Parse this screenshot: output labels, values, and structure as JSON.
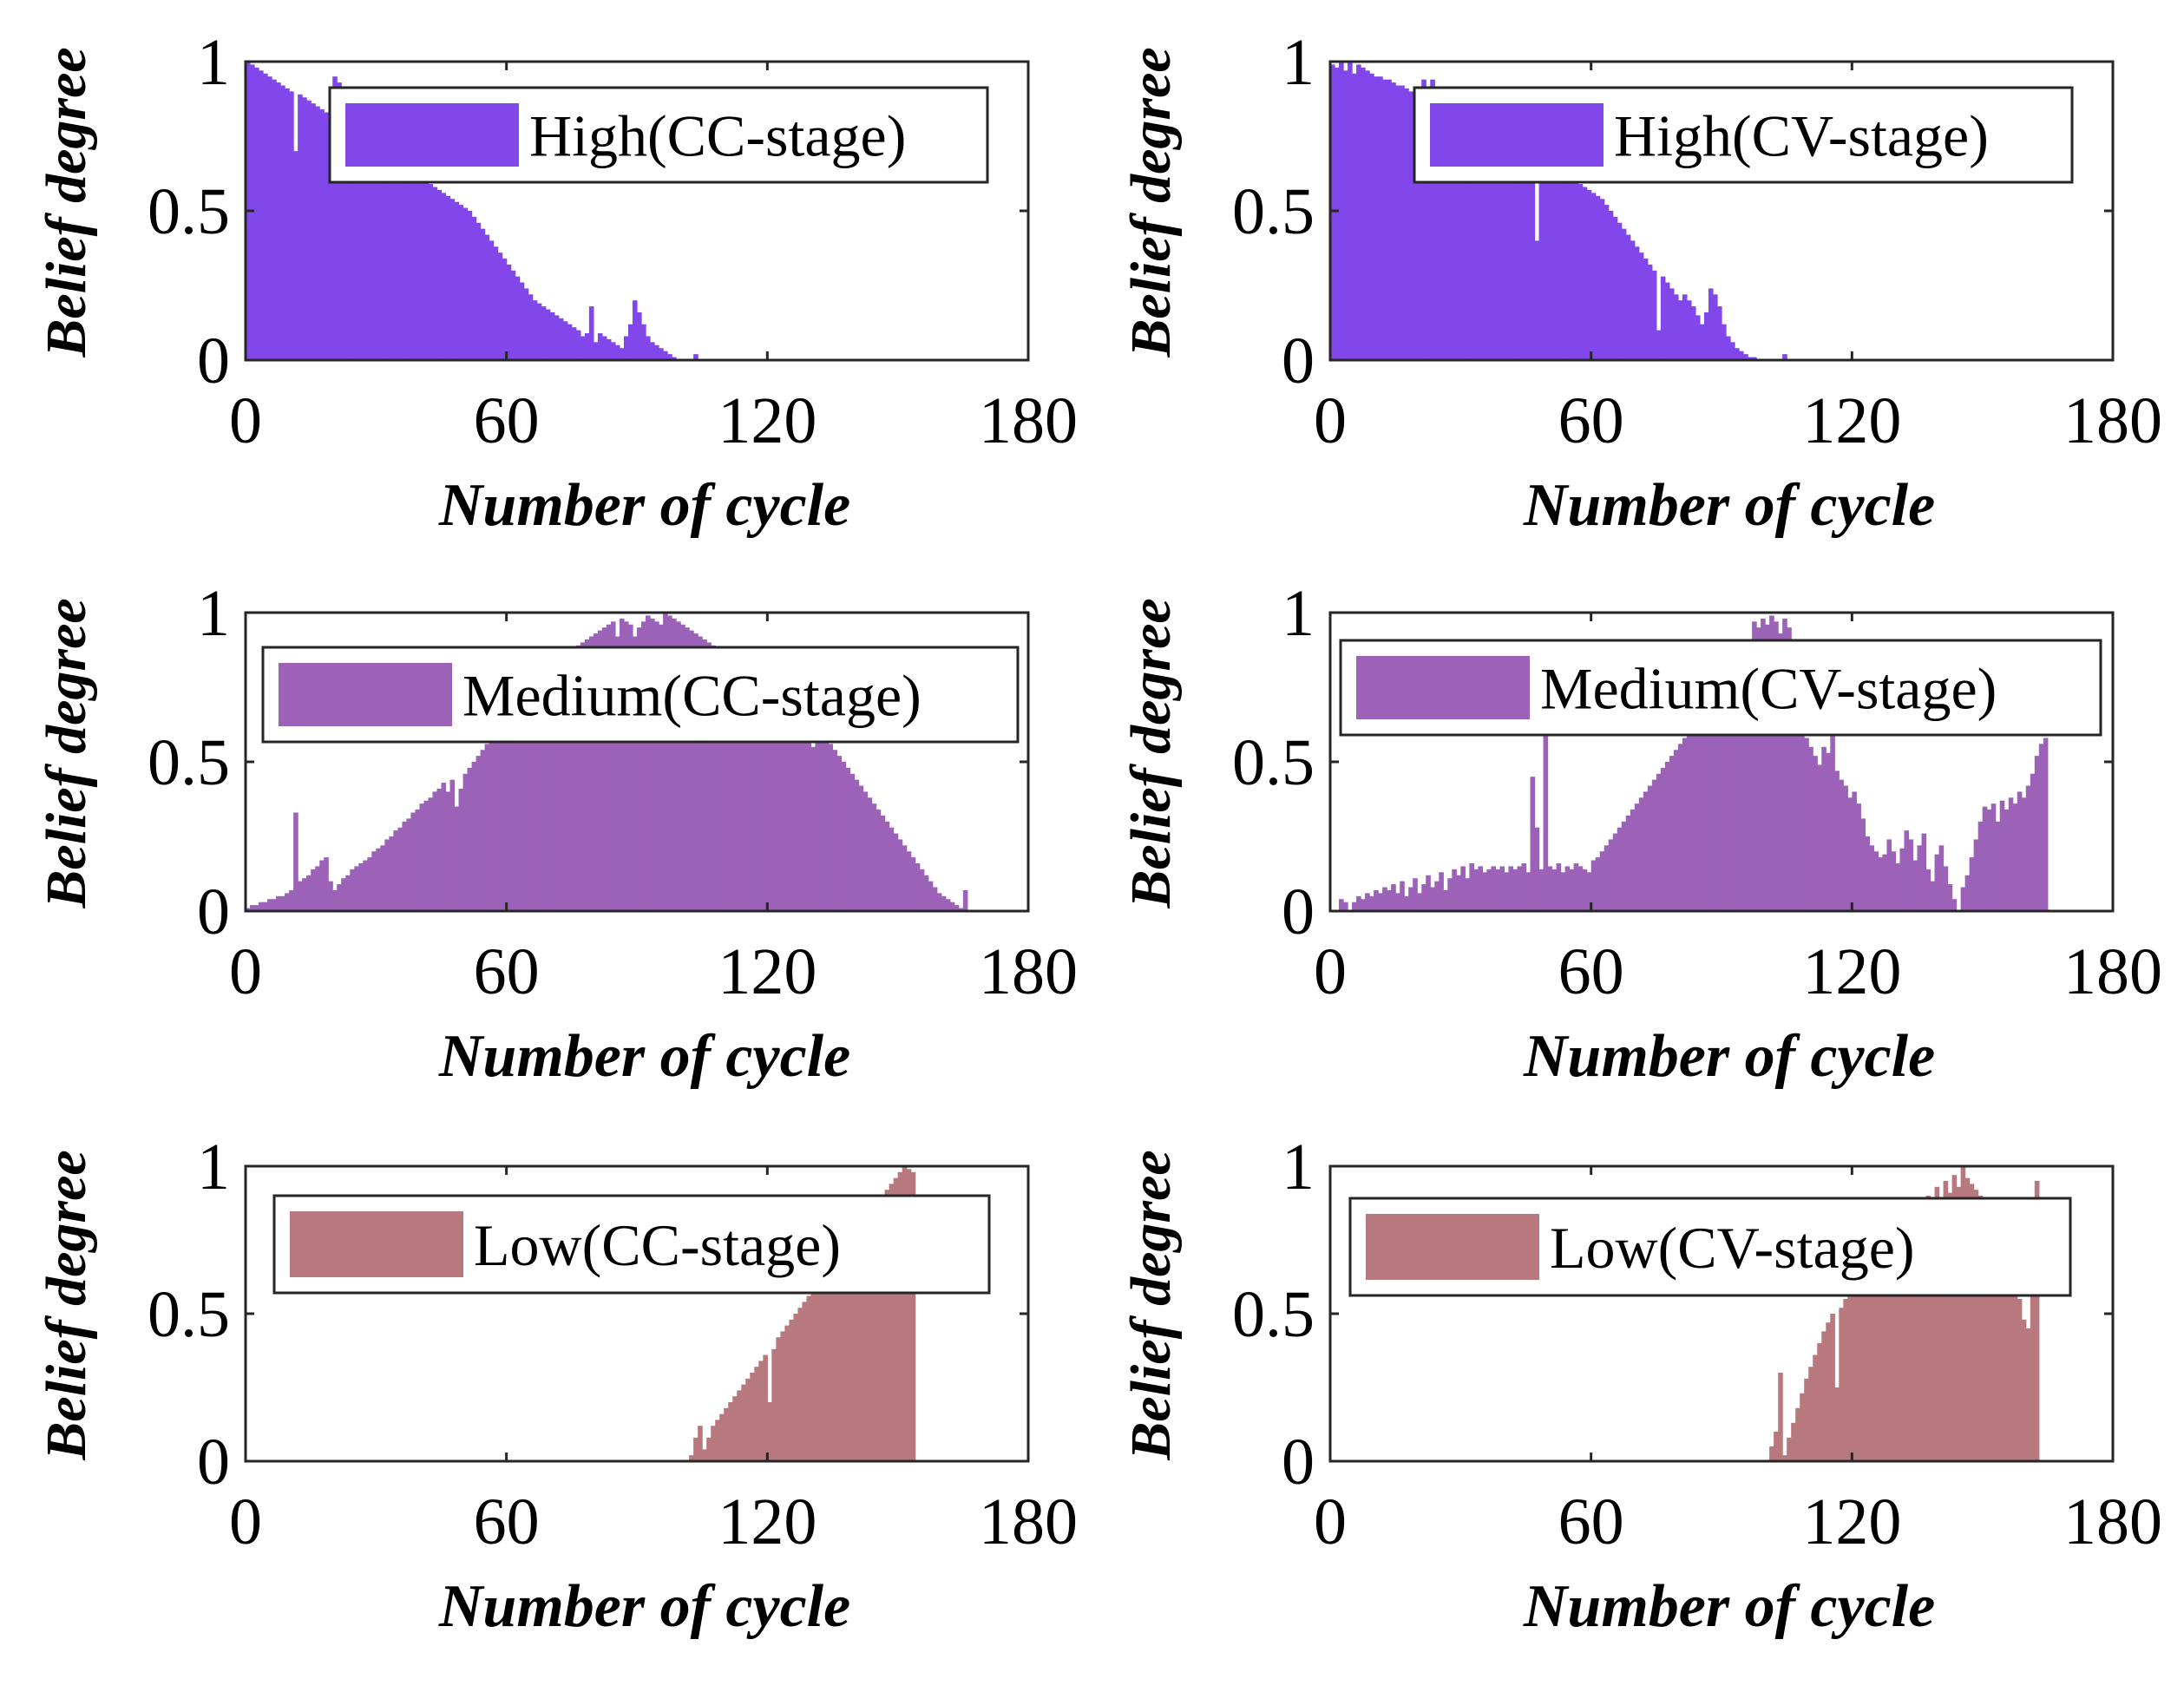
{
  "chart_data": [
    {
      "type": "bar",
      "id": "high-cc",
      "legend": "High(CC-stage)",
      "color": "#8147EA",
      "xlabel": "Number of cycle",
      "ylabel": "Belief degree",
      "xlim": [
        0,
        180
      ],
      "ylim": [
        0,
        1
      ],
      "xticks": [
        "0",
        "60",
        "120",
        "180"
      ],
      "yticks": [
        "0",
        "0.5",
        "1"
      ],
      "legend_position": "top-right",
      "values": [
        1.0,
        0.99,
        0.98,
        0.97,
        0.96,
        0.95,
        0.94,
        0.93,
        0.92,
        0.91,
        0.9,
        0.7,
        0.89,
        0.88,
        0.87,
        0.86,
        0.85,
        0.84,
        0.83,
        0.82,
        0.95,
        0.93,
        0.8,
        0.78,
        0.77,
        0.76,
        0.75,
        0.74,
        0.73,
        0.72,
        0.71,
        0.7,
        0.69,
        0.68,
        0.67,
        0.66,
        0.65,
        0.64,
        0.63,
        0.62,
        0.61,
        0.6,
        0.59,
        0.58,
        0.57,
        0.56,
        0.55,
        0.54,
        0.53,
        0.52,
        0.51,
        0.5,
        0.48,
        0.46,
        0.44,
        0.42,
        0.4,
        0.38,
        0.36,
        0.34,
        0.32,
        0.3,
        0.28,
        0.26,
        0.24,
        0.22,
        0.2,
        0.19,
        0.18,
        0.17,
        0.16,
        0.15,
        0.14,
        0.13,
        0.12,
        0.11,
        0.1,
        0.08,
        0.09,
        0.18,
        0.06,
        0.09,
        0.08,
        0.07,
        0.06,
        0.05,
        0.04,
        0.08,
        0.12,
        0.2,
        0.16,
        0.12,
        0.08,
        0.06,
        0.05,
        0.04,
        0.03,
        0.02,
        0.01,
        0.0,
        0.0,
        0.0,
        0.0,
        0.02,
        0.0
      ]
    },
    {
      "type": "bar",
      "id": "high-cv",
      "legend": "High(CV-stage)",
      "color": "#8147EA",
      "xlabel": "Number of cycle",
      "ylabel": "Belief degree",
      "xlim": [
        0,
        180
      ],
      "ylim": [
        0,
        1
      ],
      "xticks": [
        "0",
        "60",
        "120",
        "180"
      ],
      "yticks": [
        "0",
        "0.5",
        "1"
      ],
      "legend_position": "top-right",
      "values": [
        0.99,
        0.98,
        1.0,
        0.97,
        1.0,
        0.96,
        0.99,
        0.98,
        0.97,
        0.96,
        0.95,
        0.95,
        0.94,
        0.94,
        0.93,
        0.92,
        0.92,
        0.91,
        0.9,
        0.9,
        0.89,
        0.94,
        0.88,
        0.94,
        0.87,
        0.86,
        0.85,
        0.84,
        0.84,
        0.83,
        0.82,
        0.81,
        0.8,
        0.8,
        0.79,
        0.78,
        0.77,
        0.76,
        0.76,
        0.75,
        0.74,
        0.73,
        0.72,
        0.72,
        0.71,
        0.7,
        0.69,
        0.4,
        0.68,
        0.67,
        0.66,
        0.65,
        0.64,
        0.63,
        0.62,
        0.61,
        0.6,
        0.59,
        0.58,
        0.57,
        0.56,
        0.55,
        0.54,
        0.52,
        0.5,
        0.48,
        0.46,
        0.44,
        0.42,
        0.4,
        0.38,
        0.36,
        0.34,
        0.32,
        0.3,
        0.1,
        0.28,
        0.26,
        0.24,
        0.22,
        0.2,
        0.22,
        0.2,
        0.18,
        0.15,
        0.12,
        0.16,
        0.24,
        0.22,
        0.18,
        0.12,
        0.08,
        0.06,
        0.04,
        0.03,
        0.02,
        0.01,
        0.01,
        0.0,
        0.0,
        0.0,
        0.0,
        0.0,
        0.0,
        0.02
      ]
    },
    {
      "type": "bar",
      "id": "medium-cc",
      "legend": "Medium(CC-stage)",
      "color": "#9B62B8",
      "xlabel": "Number of cycle",
      "ylabel": "Belief degree",
      "xlim": [
        0,
        180
      ],
      "ylim": [
        0,
        1
      ],
      "xticks": [
        "0",
        "60",
        "120",
        "180"
      ],
      "yticks": [
        "0",
        "0.5",
        "1"
      ],
      "legend_position": "top-right",
      "values": [
        0.01,
        0.02,
        0.02,
        0.03,
        0.03,
        0.04,
        0.04,
        0.05,
        0.05,
        0.06,
        0.07,
        0.33,
        0.1,
        0.11,
        0.12,
        0.14,
        0.15,
        0.17,
        0.18,
        0.1,
        0.07,
        0.09,
        0.11,
        0.12,
        0.14,
        0.15,
        0.16,
        0.17,
        0.18,
        0.2,
        0.21,
        0.22,
        0.24,
        0.25,
        0.27,
        0.28,
        0.3,
        0.31,
        0.33,
        0.34,
        0.36,
        0.37,
        0.38,
        0.4,
        0.41,
        0.43,
        0.4,
        0.44,
        0.35,
        0.41,
        0.46,
        0.48,
        0.5,
        0.52,
        0.54,
        0.56,
        0.58,
        0.6,
        0.62,
        0.64,
        0.66,
        0.68,
        0.7,
        0.71,
        0.73,
        0.74,
        0.76,
        0.78,
        0.79,
        0.81,
        0.82,
        0.83,
        0.85,
        0.86,
        0.87,
        0.88,
        0.89,
        0.9,
        0.91,
        0.92,
        0.93,
        0.94,
        0.95,
        0.96,
        0.97,
        0.92,
        0.98,
        0.97,
        0.96,
        0.92,
        0.95,
        0.97,
        0.99,
        0.98,
        0.97,
        0.96,
        1.0,
        0.99,
        0.98,
        0.97,
        0.96,
        0.95,
        0.94,
        0.93,
        0.92,
        0.91,
        0.9,
        0.89,
        0.88,
        0.87,
        0.86,
        0.85,
        0.84,
        0.83,
        0.82,
        0.81,
        0.8,
        0.79,
        0.78,
        0.77,
        0.76,
        0.75,
        0.74,
        0.73,
        0.72,
        0.71,
        0.7,
        0.69,
        0.68,
        0.67,
        0.55,
        0.62,
        0.6,
        0.58,
        0.56,
        0.54,
        0.52,
        0.5,
        0.48,
        0.46,
        0.44,
        0.42,
        0.4,
        0.38,
        0.36,
        0.34,
        0.32,
        0.3,
        0.28,
        0.26,
        0.24,
        0.22,
        0.2,
        0.18,
        0.16,
        0.14,
        0.12,
        0.1,
        0.08,
        0.06,
        0.05,
        0.04,
        0.03,
        0.02,
        0.01,
        0.07
      ]
    },
    {
      "type": "bar",
      "id": "medium-cv",
      "legend": "Medium(CV-stage)",
      "color": "#9B62B8",
      "xlabel": "Number of cycle",
      "ylabel": "Belief degree",
      "xlim": [
        0,
        180
      ],
      "ylim": [
        0,
        1
      ],
      "xticks": [
        "0",
        "60",
        "120",
        "180"
      ],
      "yticks": [
        "0",
        "0.5",
        "1"
      ],
      "legend_position": "top-right",
      "values": [
        0.0,
        0.0,
        0.04,
        0.03,
        0.0,
        0.03,
        0.05,
        0.04,
        0.06,
        0.05,
        0.07,
        0.06,
        0.08,
        0.07,
        0.09,
        0.06,
        0.1,
        0.05,
        0.08,
        0.11,
        0.06,
        0.09,
        0.12,
        0.08,
        0.1,
        0.13,
        0.07,
        0.11,
        0.14,
        0.12,
        0.15,
        0.11,
        0.16,
        0.14,
        0.15,
        0.13,
        0.14,
        0.15,
        0.14,
        0.15,
        0.13,
        0.15,
        0.14,
        0.15,
        0.16,
        0.13,
        0.45,
        0.28,
        0.14,
        0.62,
        0.15,
        0.14,
        0.16,
        0.13,
        0.15,
        0.14,
        0.16,
        0.15,
        0.14,
        0.13,
        0.17,
        0.18,
        0.2,
        0.22,
        0.24,
        0.26,
        0.28,
        0.3,
        0.32,
        0.34,
        0.36,
        0.38,
        0.4,
        0.42,
        0.44,
        0.46,
        0.48,
        0.5,
        0.52,
        0.54,
        0.56,
        0.58,
        0.6,
        0.62,
        0.64,
        0.66,
        0.68,
        0.7,
        0.72,
        0.74,
        0.76,
        0.78,
        0.8,
        0.82,
        0.84,
        0.86,
        0.88,
        0.97,
        0.95,
        0.98,
        0.96,
        0.99,
        0.97,
        0.93,
        0.98,
        0.95,
        0.9,
        0.85,
        0.8,
        0.58,
        0.55,
        0.52,
        0.49,
        0.55,
        0.53,
        0.59,
        0.47,
        0.44,
        0.42,
        0.38,
        0.4,
        0.36,
        0.31,
        0.25,
        0.22,
        0.2,
        0.18,
        0.19,
        0.24,
        0.2,
        0.16,
        0.21,
        0.27,
        0.24,
        0.17,
        0.22,
        0.26,
        0.14,
        0.1,
        0.19,
        0.22,
        0.15,
        0.09,
        0.04,
        0.0,
        0.08,
        0.12,
        0.18,
        0.24,
        0.3,
        0.35,
        0.34,
        0.36,
        0.3,
        0.37,
        0.34,
        0.38,
        0.36,
        0.4,
        0.38,
        0.42,
        0.46,
        0.52,
        0.56,
        0.58
      ]
    },
    {
      "type": "bar",
      "id": "low-cc",
      "legend": "Low(CC-stage)",
      "color": "#B8797E",
      "xlabel": "Number of cycle",
      "ylabel": "Belief degree",
      "xlim": [
        0,
        180
      ],
      "ylim": [
        0,
        1
      ],
      "xticks": [
        "0",
        "60",
        "120",
        "180"
      ],
      "yticks": [
        "0",
        "0.5",
        "1"
      ],
      "legend_position": "top-right",
      "values": [
        0,
        0,
        0,
        0,
        0,
        0,
        0,
        0,
        0,
        0,
        0,
        0,
        0,
        0,
        0,
        0,
        0,
        0,
        0,
        0,
        0,
        0,
        0,
        0,
        0,
        0,
        0,
        0,
        0,
        0,
        0,
        0,
        0,
        0,
        0,
        0,
        0,
        0,
        0,
        0,
        0,
        0,
        0,
        0,
        0,
        0,
        0,
        0,
        0,
        0,
        0,
        0,
        0,
        0,
        0,
        0,
        0,
        0,
        0,
        0,
        0,
        0,
        0,
        0,
        0,
        0,
        0,
        0,
        0,
        0,
        0,
        0,
        0,
        0,
        0,
        0,
        0,
        0,
        0,
        0,
        0,
        0,
        0,
        0,
        0,
        0,
        0,
        0,
        0,
        0,
        0,
        0,
        0,
        0,
        0,
        0,
        0,
        0,
        0,
        0,
        0,
        0.0,
        0.02,
        0.08,
        0.12,
        0.04,
        0.08,
        0.12,
        0.14,
        0.16,
        0.18,
        0.2,
        0.22,
        0.24,
        0.26,
        0.28,
        0.3,
        0.32,
        0.34,
        0.36,
        0.2,
        0.38,
        0.42,
        0.44,
        0.46,
        0.48,
        0.5,
        0.52,
        0.54,
        0.56,
        0.58,
        0.6,
        0.62,
        0.64,
        0.66,
        0.68,
        0.7,
        0.72,
        0.74,
        0.76,
        0.78,
        0.8,
        0.82,
        0.84,
        0.86,
        0.88,
        0.9,
        0.92,
        0.94,
        0.96,
        0.98,
        1.0,
        0.99,
        0.98
      ]
    },
    {
      "type": "bar",
      "id": "low-cv",
      "legend": "Low(CV-stage)",
      "color": "#B8797E",
      "xlabel": "Number of cycle",
      "ylabel": "Belief degree",
      "xlim": [
        0,
        180
      ],
      "ylim": [
        0,
        1
      ],
      "xticks": [
        "0",
        "60",
        "120",
        "180"
      ],
      "yticks": [
        "0",
        "0.5",
        "1"
      ],
      "legend_position": "top-right",
      "values": [
        0,
        0,
        0,
        0,
        0,
        0,
        0,
        0,
        0,
        0,
        0,
        0,
        0,
        0,
        0,
        0,
        0,
        0,
        0,
        0,
        0,
        0,
        0,
        0,
        0,
        0,
        0,
        0,
        0,
        0,
        0,
        0,
        0,
        0,
        0,
        0,
        0,
        0,
        0,
        0,
        0,
        0,
        0,
        0,
        0,
        0,
        0,
        0,
        0,
        0,
        0,
        0,
        0,
        0,
        0,
        0,
        0,
        0,
        0,
        0,
        0,
        0,
        0,
        0,
        0,
        0,
        0,
        0,
        0,
        0,
        0,
        0,
        0,
        0,
        0,
        0,
        0,
        0,
        0,
        0,
        0,
        0,
        0,
        0,
        0,
        0,
        0,
        0,
        0,
        0,
        0,
        0,
        0,
        0,
        0,
        0,
        0,
        0,
        0,
        0,
        0,
        0.05,
        0.1,
        0.3,
        0.02,
        0.08,
        0.13,
        0.18,
        0.23,
        0.28,
        0.32,
        0.36,
        0.4,
        0.44,
        0.47,
        0.5,
        0.25,
        0.52,
        0.55,
        0.58,
        0.61,
        0.64,
        0.67,
        0.63,
        0.7,
        0.73,
        0.69,
        0.76,
        0.74,
        0.79,
        0.72,
        0.82,
        0.78,
        0.85,
        0.8,
        0.88,
        0.83,
        0.9,
        0.86,
        0.93,
        0.88,
        0.95,
        0.91,
        0.97,
        0.93,
        1.0,
        0.96,
        0.94,
        0.92,
        0.9,
        0.88,
        0.86,
        0.84,
        0.8,
        0.76,
        0.72,
        0.68,
        0.62,
        0.55,
        0.48,
        0.45,
        0.6,
        0.95
      ]
    }
  ]
}
